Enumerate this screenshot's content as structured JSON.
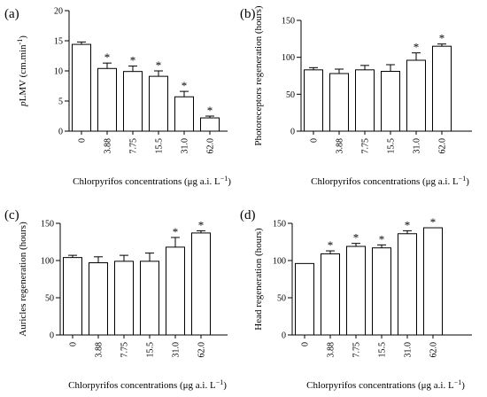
{
  "chart_data": [
    {
      "type": "bar",
      "panel_label": "(a)",
      "categories": [
        "0",
        "3.88",
        "7.75",
        "15.5",
        "31.0",
        "62.0"
      ],
      "values": [
        14.4,
        10.4,
        9.9,
        9.1,
        5.7,
        2.2
      ],
      "errors": [
        0.4,
        0.9,
        0.9,
        0.9,
        0.9,
        0.3
      ],
      "significant": [
        false,
        true,
        true,
        true,
        true,
        true
      ],
      "significance_marker": "*",
      "ylabel_italic": "p",
      "ylabel_rest": "LMV (cm.min",
      "ylabel_sup": "-1",
      "ylabel_end": ")",
      "xlabel": "Chlorpyrifos concentrations (μg a.i. L",
      "xlabel_sup": "−1",
      "xlabel_end": ")",
      "yticks": [
        0,
        5,
        10,
        15,
        20
      ],
      "ylim": [
        0,
        20
      ]
    },
    {
      "type": "bar",
      "panel_label": "(b)",
      "categories": [
        "0",
        "3.88",
        "7.75",
        "15.5",
        "31.0",
        "62.0"
      ],
      "values": [
        83,
        78,
        83,
        81,
        96,
        115
      ],
      "errors": [
        3,
        6,
        6,
        9,
        10,
        3
      ],
      "significant": [
        false,
        false,
        false,
        false,
        true,
        true
      ],
      "significance_marker": "*",
      "ylabel": "Photoreceptors regeneration (hours)",
      "xlabel": "Chlorpyrifos concentrations (μg a.i. L",
      "xlabel_sup": "−1",
      "xlabel_end": ")",
      "yticks": [
        0,
        50,
        100,
        150
      ],
      "ylim": [
        0,
        150
      ]
    },
    {
      "type": "bar",
      "panel_label": "(c)",
      "categories": [
        "0",
        "3.88",
        "7.75",
        "15.5",
        "31.0",
        "62.0"
      ],
      "values": [
        104,
        97,
        99,
        99,
        118,
        137
      ],
      "errors": [
        3,
        8,
        8,
        11,
        13,
        3
      ],
      "significant": [
        false,
        false,
        false,
        false,
        true,
        true
      ],
      "significance_marker": "*",
      "ylabel": "Auricles regeneration (hours)",
      "xlabel": "Chlorpyrifos concentrations (μg a.i. L",
      "xlabel_sup": "−1",
      "xlabel_end": ")",
      "yticks": [
        0,
        50,
        100,
        150
      ],
      "ylim": [
        0,
        150
      ]
    },
    {
      "type": "bar",
      "panel_label": "(d)",
      "categories": [
        "0",
        "3.88",
        "7.75",
        "15.5",
        "31.0",
        "62.0"
      ],
      "values": [
        96,
        109,
        119,
        117,
        136,
        144
      ],
      "errors": [
        0,
        4,
        4,
        4,
        4,
        0
      ],
      "significant": [
        false,
        true,
        true,
        true,
        true,
        true
      ],
      "significance_marker": "*",
      "ylabel": "Head regeneration (hours)",
      "xlabel": "Chlorpyrifos concentrations (μg a.i. L",
      "xlabel_sup": "−1",
      "xlabel_end": ")",
      "yticks": [
        0,
        50,
        100,
        150
      ],
      "ylim": [
        0,
        150
      ]
    }
  ]
}
